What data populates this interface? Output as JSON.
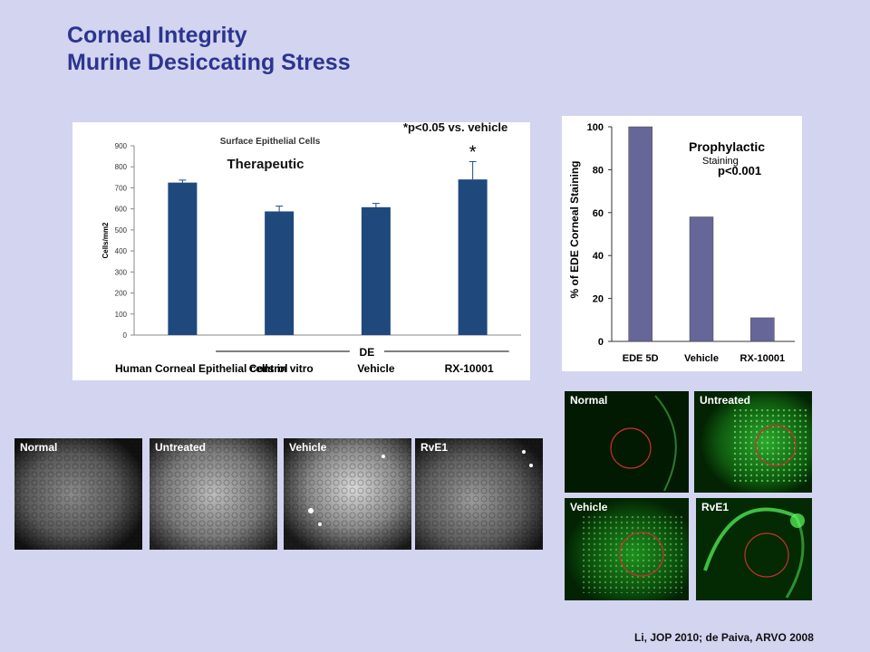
{
  "title_line1": "Corneal Integrity",
  "title_line2": "Murine Desiccating Stress",
  "chart_data": [
    {
      "type": "bar",
      "title": "Surface Epithelial Cells",
      "subtitle": "Therapeutic",
      "annotation": "*p<0.05 vs. vehicle",
      "significance_marker": "*",
      "significance_category": "RX-10001",
      "group_label": "DE",
      "ylabel": "Cells/mm2",
      "ylim": [
        0,
        900
      ],
      "yticks": [
        0,
        100,
        200,
        300,
        400,
        500,
        600,
        700,
        800,
        900
      ],
      "categories": [
        "Human Corneal Epithelial cells in vitro",
        "Control",
        "Vehicle",
        "RX-10001"
      ],
      "values": [
        725,
        588,
        608,
        740
      ],
      "errors": [
        12,
        25,
        18,
        85
      ],
      "color": "#1f497d",
      "grid": false
    },
    {
      "type": "bar",
      "title": "Prophylactic",
      "subtitle": "Staining",
      "annotation": "p<0.001",
      "ylabel": "% of EDE Corneal Staining",
      "ylim": [
        0,
        100
      ],
      "yticks": [
        0,
        20,
        40,
        60,
        80,
        100
      ],
      "categories": [
        "EDE 5D",
        "Vehicle",
        "RX-10001"
      ],
      "values": [
        100,
        58,
        11
      ],
      "color": "#666699",
      "grid": false
    }
  ],
  "gray_images": [
    {
      "label": "Normal"
    },
    {
      "label": "Untreated"
    },
    {
      "label": "Vehicle"
    },
    {
      "label": "RvE1"
    }
  ],
  "green_images": [
    {
      "label": "Normal"
    },
    {
      "label": "Untreated"
    },
    {
      "label": "Vehicle"
    },
    {
      "label": "RvE1"
    }
  ],
  "citation": "Li, JOP 2010; de Paiva, ARVO 2008"
}
